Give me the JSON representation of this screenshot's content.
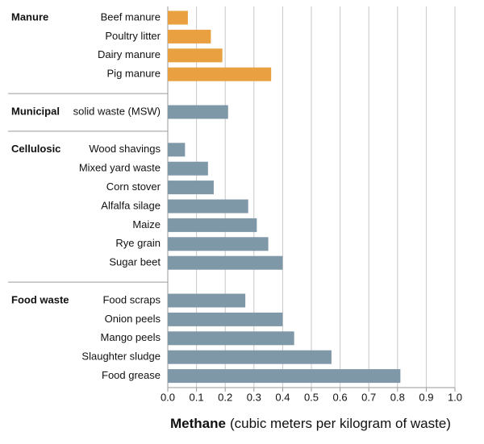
{
  "chart_data": {
    "type": "bar",
    "orientation": "horizontal",
    "groups": [
      {
        "name": "Manure",
        "color": "#e9a041",
        "categories": [
          "Beef manure",
          "Poultry litter",
          "Dairy manure",
          "Pig manure"
        ],
        "values": [
          0.07,
          0.15,
          0.19,
          0.36
        ]
      },
      {
        "name": "Municipal",
        "color": "#7f98a8",
        "categories": [
          "solid waste (MSW)"
        ],
        "values": [
          0.21
        ]
      },
      {
        "name": "Cellulosic",
        "color": "#7f98a8",
        "categories": [
          "Wood shavings",
          "Mixed yard waste",
          "Corn stover",
          "Alfalfa silage",
          "Maize",
          "Rye grain",
          "Sugar beet"
        ],
        "values": [
          0.06,
          0.14,
          0.16,
          0.28,
          0.31,
          0.35,
          0.4
        ]
      },
      {
        "name": "Food waste",
        "color": "#7f98a8",
        "categories": [
          "Food scraps",
          "Onion peels",
          "Mango peels",
          "Slaughter sludge",
          "Food grease"
        ],
        "values": [
          0.27,
          0.4,
          0.44,
          0.57,
          0.81
        ]
      }
    ],
    "x_label": {
      "main": "Methane",
      "unit": "(cubic meters per kilogram of waste)"
    },
    "xlim": [
      0,
      1
    ],
    "xticks": [
      {
        "value": 0,
        "label": "0.0"
      },
      0.1,
      0.2,
      0.3,
      0.4,
      0.5,
      0.6,
      0.7,
      0.8,
      0.9,
      {
        "value": 1,
        "label": "1.0"
      }
    ],
    "grid": true
  }
}
